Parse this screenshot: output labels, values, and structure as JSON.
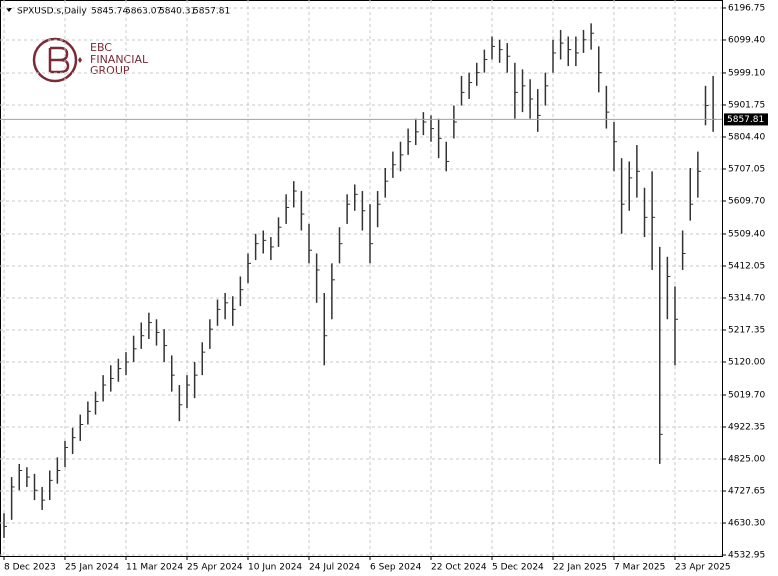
{
  "chart_data": {
    "type": "ohlc",
    "header": {
      "symbol": "SPXUSD.s,Daily",
      "values": [
        5845.74,
        5863.07,
        5840.31,
        5857.81
      ]
    },
    "logo": {
      "short": "EBC",
      "line1": "FINANCIAL",
      "line2": "GROUP"
    },
    "color": "#333333",
    "grid": true,
    "last_price": 5857.81,
    "ylim": [
      4530,
      6221
    ],
    "yticks": [
      6196.75,
      {
        "value": 6099.4,
        "label": "6099.40"
      },
      {
        "value": 5999.1,
        "label": "5999.10"
      },
      5901.75,
      {
        "value": 5804.4,
        "label": "5804.40"
      },
      5707.05,
      {
        "value": 5609.7,
        "label": "5609.70"
      },
      {
        "value": 5509.4,
        "label": "5509.40"
      },
      5412.05,
      {
        "value": 5314.7,
        "label": "5314.70"
      },
      5217.35,
      {
        "value": 5120,
        "label": "5120.00"
      },
      {
        "value": 5019.7,
        "label": "5019.70"
      },
      4922.35,
      {
        "value": 4825,
        "label": "4825.00"
      },
      4727.65,
      {
        "value": 4630.3,
        "label": "4630.30"
      },
      4532.95
    ],
    "categories": [
      "8 Dec 2023",
      null,
      null,
      null,
      null,
      null,
      null,
      null,
      "25 Jan 2024",
      null,
      null,
      null,
      null,
      null,
      null,
      null,
      "11 Mar 2024",
      null,
      null,
      null,
      null,
      null,
      null,
      null,
      "25 Apr 2024",
      null,
      null,
      null,
      null,
      null,
      null,
      null,
      "10 Jun 2024",
      null,
      null,
      null,
      null,
      null,
      null,
      null,
      "24 Jul 2024",
      null,
      null,
      null,
      null,
      null,
      null,
      null,
      "6 Sep 2024",
      null,
      null,
      null,
      null,
      null,
      null,
      null,
      "22 Oct 2024",
      null,
      null,
      null,
      null,
      null,
      null,
      null,
      "5 Dec 2024",
      null,
      null,
      null,
      null,
      null,
      null,
      null,
      "22 Jan 2025",
      null,
      null,
      null,
      null,
      null,
      null,
      null,
      "7 Mar 2025",
      null,
      null,
      null,
      null,
      null,
      null,
      null,
      "23 Apr 2025",
      null,
      null,
      null,
      null,
      null
    ],
    "high": [
      4660,
      4770,
      4810,
      4800,
      4780,
      4740,
      4790,
      4830,
      4880,
      4920,
      4960,
      5000,
      5030,
      5080,
      5110,
      5130,
      5150,
      5200,
      5240,
      5270,
      5250,
      5220,
      5140,
      5050,
      5080,
      5120,
      5180,
      5250,
      5310,
      5330,
      5320,
      5380,
      5450,
      5510,
      5520,
      5500,
      5560,
      5630,
      5670,
      5640,
      5540,
      5450,
      5330,
      5420,
      5530,
      5630,
      5660,
      5640,
      5600,
      5640,
      5710,
      5760,
      5790,
      5830,
      5860,
      5880,
      5870,
      5860,
      5790,
      5900,
      5990,
      6000,
      6030,
      6070,
      6110,
      6100,
      6090,
      6030,
      6010,
      5980,
      5950,
      6000,
      6100,
      6130,
      6110,
      6110,
      6130,
      6150,
      6080,
      5960,
      5850,
      5740,
      5730,
      5780,
      5650,
      5700,
      5470,
      5440,
      5350,
      5520,
      5710,
      5760,
      5960,
      5990
    ],
    "low": [
      4585,
      4640,
      4730,
      4740,
      4700,
      4670,
      4700,
      4750,
      4800,
      4840,
      4880,
      4930,
      4960,
      5000,
      5030,
      5060,
      5080,
      5120,
      5160,
      5190,
      5170,
      5120,
      5030,
      4940,
      4980,
      5010,
      5080,
      5160,
      5230,
      5250,
      5230,
      5290,
      5360,
      5430,
      5450,
      5430,
      5470,
      5540,
      5590,
      5520,
      5420,
      5300,
      5110,
      5250,
      5420,
      5540,
      5580,
      5520,
      5420,
      5530,
      5620,
      5680,
      5700,
      5750,
      5780,
      5810,
      5790,
      5740,
      5700,
      5800,
      5900,
      5920,
      5960,
      6000,
      6040,
      6030,
      6000,
      5860,
      5880,
      5860,
      5820,
      5900,
      6000,
      6040,
      6020,
      6020,
      6060,
      6070,
      5940,
      5830,
      5700,
      5510,
      5580,
      5620,
      5500,
      5400,
      4810,
      5250,
      5110,
      5400,
      5550,
      5620,
      5840,
      5820
    ],
    "close": [
      4620,
      4740,
      4790,
      4770,
      4730,
      4700,
      4760,
      4790,
      4860,
      4890,
      4930,
      4970,
      5000,
      5050,
      5070,
      5100,
      5120,
      5160,
      5200,
      5240,
      5210,
      5170,
      5080,
      4990,
      5050,
      5080,
      5150,
      5220,
      5280,
      5300,
      5280,
      5340,
      5420,
      5480,
      5490,
      5470,
      5530,
      5590,
      5640,
      5570,
      5460,
      5400,
      5200,
      5370,
      5480,
      5600,
      5630,
      5580,
      5480,
      5600,
      5670,
      5720,
      5750,
      5790,
      5820,
      5850,
      5830,
      5800,
      5730,
      5850,
      5940,
      5970,
      6000,
      6040,
      6080,
      6070,
      6050,
      5940,
      5960,
      5920,
      5870,
      5960,
      6060,
      6090,
      6070,
      6060,
      6100,
      6120,
      6000,
      5880,
      5790,
      5600,
      5680,
      5700,
      5560,
      5560,
      4900,
      5380,
      5250,
      5450,
      5600,
      5700,
      5900,
      5857.81
    ]
  }
}
